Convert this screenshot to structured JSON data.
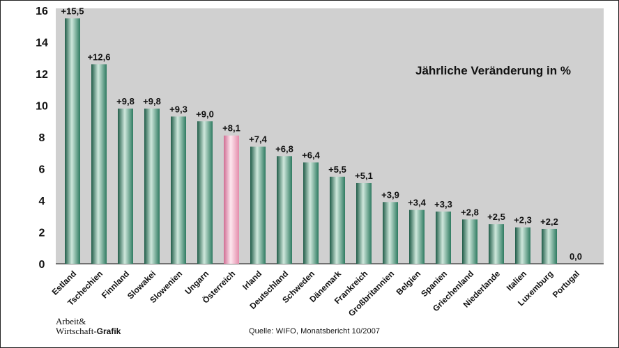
{
  "chart_data": {
    "type": "bar",
    "title": "Jährliche Veränderung in %",
    "categories": [
      "Estland",
      "Tschechien",
      "Finnland",
      "Slowakei",
      "Slowenien",
      "Ungarn",
      "Österreich",
      "Irland",
      "Deutschland",
      "Schweden",
      "Dänemark",
      "Frankreich",
      "Großbritannien",
      "Belgien",
      "Spanien",
      "Griechenland",
      "Niederlande",
      "Italien",
      "Luxemburg",
      "Portugal"
    ],
    "values": [
      15.5,
      12.6,
      9.8,
      9.8,
      9.3,
      9.0,
      8.1,
      7.4,
      6.8,
      6.4,
      5.5,
      5.1,
      3.9,
      3.4,
      3.3,
      2.8,
      2.5,
      2.3,
      2.2,
      0.0
    ],
    "value_labels": [
      "+15,5",
      "+12,6",
      "+9,8",
      "+9,8",
      "+9,3",
      "+9,0",
      "+8,1",
      "+7,4",
      "+6,8",
      "+6,4",
      "+5,5",
      "+5,1",
      "+3,9",
      "+3,4",
      "+3,3",
      "+2,8",
      "+2,5",
      "+2,3",
      "+2,2",
      "0,0"
    ],
    "highlight": "Österreich",
    "ylim": [
      0,
      16
    ],
    "yticks": [
      "0",
      "2",
      "4",
      "6",
      "8",
      "10",
      "12",
      "14",
      "16"
    ],
    "grid": false,
    "colors": {
      "bar": "#2f7a62",
      "bar_highlight": "#e8a0b8",
      "plot_bg": "#d0d0d0"
    }
  },
  "footer": {
    "brand_line1": "Arbeit&",
    "brand_line2": "Wirtschaft-",
    "brand_bold": "Grafik",
    "source": "Quelle: WIFO, Monatsbericht 10/2007"
  }
}
